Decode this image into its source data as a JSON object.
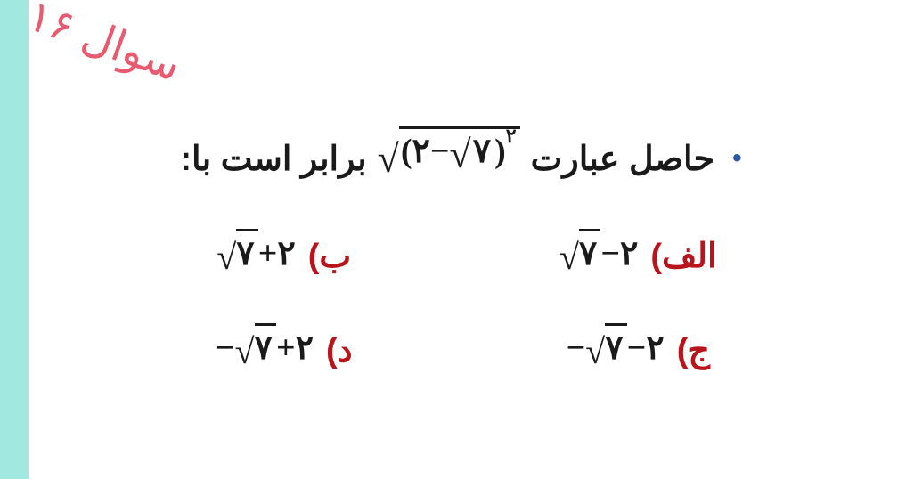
{
  "colors": {
    "leftBand": "#a0e8e0",
    "questionLabel": "#e85a70",
    "questionDot": "#2a5aa8",
    "optionLabel": "#b8141c",
    "text": "#1a1a1a",
    "background": "#ffffff"
  },
  "questionLabel": "سوال ۱۶",
  "question": {
    "dot": "•",
    "prefix": "حاصل عبارت",
    "suffix": "برابر است با:",
    "formula": {
      "outerRadical": "√",
      "lparen": "(",
      "num2": "۲",
      "minus": "−",
      "innerRadical": "√",
      "num7": "۷",
      "rparen": ")",
      "exponent": "۲"
    }
  },
  "options": {
    "alef": {
      "label": "الف)",
      "math": {
        "radical": "√",
        "num7": "۷",
        "op": "−",
        "num2": "۲"
      }
    },
    "be": {
      "label": "ب)",
      "math": {
        "radical": "√",
        "num7": "۷",
        "op": "+",
        "num2": "۲"
      }
    },
    "jim": {
      "label": "ج)",
      "math": {
        "neg": "−",
        "radical": "√",
        "num7": "۷",
        "op": "−",
        "num2": "۲"
      }
    },
    "dal": {
      "label": "د)",
      "math": {
        "neg": "−",
        "radical": "√",
        "num7": "۷",
        "op": "+",
        "num2": "۲"
      }
    }
  }
}
